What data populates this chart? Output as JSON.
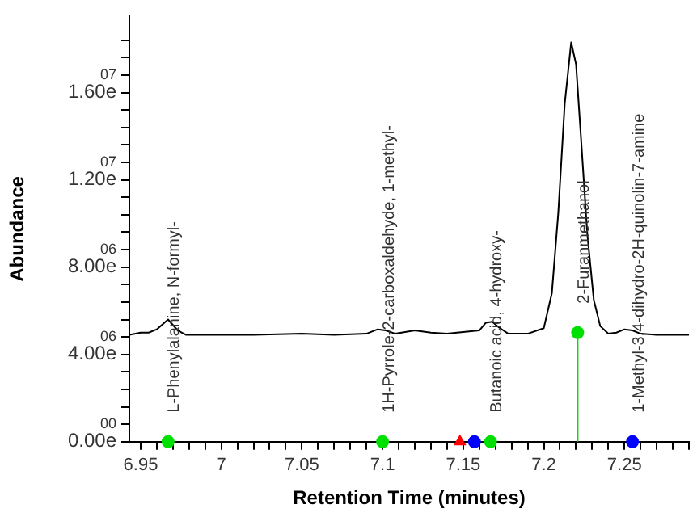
{
  "chart_data": {
    "type": "line",
    "xlabel": "Retention Time (minutes)",
    "ylabel": "Abundance",
    "grid": false,
    "legend": false,
    "xlim": [
      6.943,
      7.29
    ],
    "ylim": [
      0,
      19500000
    ],
    "xticks": [
      {
        "value": 6.95,
        "label": "6.95"
      },
      {
        "value": 6.96,
        "label": null
      },
      {
        "value": 6.97,
        "label": null
      },
      {
        "value": 6.98,
        "label": null
      },
      {
        "value": 6.99,
        "label": null
      },
      {
        "value": 7,
        "label": "7"
      },
      {
        "value": 7.01,
        "label": null
      },
      {
        "value": 7.02,
        "label": null
      },
      {
        "value": 7.03,
        "label": null
      },
      {
        "value": 7.04,
        "label": null
      },
      {
        "value": 7.05,
        "label": "7.05"
      },
      {
        "value": 7.06,
        "label": null
      },
      {
        "value": 7.07,
        "label": null
      },
      {
        "value": 7.08,
        "label": null
      },
      {
        "value": 7.09,
        "label": null
      },
      {
        "value": 7.1,
        "label": "7.1"
      },
      {
        "value": 7.11,
        "label": null
      },
      {
        "value": 7.12,
        "label": null
      },
      {
        "value": 7.13,
        "label": null
      },
      {
        "value": 7.14,
        "label": null
      },
      {
        "value": 7.15,
        "label": "7.15"
      },
      {
        "value": 7.16,
        "label": null
      },
      {
        "value": 7.17,
        "label": null
      },
      {
        "value": 7.18,
        "label": null
      },
      {
        "value": 7.19,
        "label": null
      },
      {
        "value": 7.2,
        "label": "7.2"
      },
      {
        "value": 7.21,
        "label": null
      },
      {
        "value": 7.22,
        "label": null
      },
      {
        "value": 7.23,
        "label": null
      },
      {
        "value": 7.24,
        "label": null
      },
      {
        "value": 7.25,
        "label": "7.25"
      },
      {
        "value": 7.26,
        "label": null
      },
      {
        "value": 7.27,
        "label": null
      },
      {
        "value": 7.28,
        "label": null
      },
      {
        "value": 7.29,
        "label": null
      }
    ],
    "yticks": [
      {
        "value": 0,
        "label": "0.00e00"
      },
      {
        "value": 800000,
        "label": null
      },
      {
        "value": 1600000,
        "label": null
      },
      {
        "value": 2400000,
        "label": null
      },
      {
        "value": 3200000,
        "label": null
      },
      {
        "value": 4000000,
        "label": "4.00e06"
      },
      {
        "value": 4800000,
        "label": null
      },
      {
        "value": 5600000,
        "label": null
      },
      {
        "value": 6400000,
        "label": null
      },
      {
        "value": 7200000,
        "label": null
      },
      {
        "value": 8000000,
        "label": "8.00e06"
      },
      {
        "value": 8800000,
        "label": null
      },
      {
        "value": 9600000,
        "label": null
      },
      {
        "value": 10400000,
        "label": null
      },
      {
        "value": 11200000,
        "label": null
      },
      {
        "value": 12000000,
        "label": "1.20e07"
      },
      {
        "value": 12800000,
        "label": null
      },
      {
        "value": 13600000,
        "label": null
      },
      {
        "value": 14400000,
        "label": null
      },
      {
        "value": 15200000,
        "label": null
      },
      {
        "value": 16000000,
        "label": "1.60e07"
      },
      {
        "value": 16800000,
        "label": null
      },
      {
        "value": 17600000,
        "label": null
      },
      {
        "value": 18400000,
        "label": null
      }
    ],
    "series": [
      {
        "type": "line",
        "color": "#000000",
        "marker": "none",
        "x": [
          6.943,
          6.95,
          6.955,
          6.96,
          6.967,
          6.973,
          6.978,
          7.0,
          7.02,
          7.05,
          7.07,
          7.09,
          7.097,
          7.102,
          7.108,
          7.12,
          7.13,
          7.14,
          7.16,
          7.164,
          7.168,
          7.172,
          7.178,
          7.19,
          7.2,
          7.205,
          7.209,
          7.213,
          7.217,
          7.22,
          7.223,
          7.227,
          7.231,
          7.235,
          7.24,
          7.245,
          7.25,
          7.255,
          7.26,
          7.27,
          7.29
        ],
        "values": [
          4900000.0,
          5000000.0,
          5000000.0,
          5150000.0,
          5600000.0,
          5100000.0,
          4900000.0,
          4900000.0,
          4900000.0,
          4950000.0,
          4900000.0,
          4950000.0,
          5150000.0,
          5100000.0,
          4950000.0,
          5100000.0,
          5000000.0,
          4950000.0,
          5100000.0,
          5450000.0,
          5500000.0,
          5250000.0,
          4950000.0,
          4950000.0,
          5200000.0,
          6800000.0,
          10500000.0,
          15500000.0,
          18300000.0,
          17300000.0,
          14000000.0,
          9500000.0,
          6500000.0,
          5300000.0,
          4950000.0,
          5000000.0,
          5150000.0,
          5100000.0,
          4950000.0,
          4900000.0,
          4900000.0
        ]
      },
      {
        "type": "line",
        "color": "#00e000",
        "marker": "none",
        "x": [
          7.221,
          7.221
        ],
        "values": [
          0,
          5000000
        ]
      },
      {
        "type": "scatter",
        "color": "#00e000",
        "marker": "circle",
        "x": [
          6.967,
          7.1,
          7.167,
          7.221
        ],
        "values": [
          0,
          0,
          0,
          5000000
        ]
      },
      {
        "type": "scatter",
        "color": "#ff0000",
        "marker": "triangle",
        "x": [
          7.148
        ],
        "values": [
          0
        ]
      },
      {
        "type": "scatter",
        "color": "#0000ff",
        "marker": "circle",
        "x": [
          7.157,
          7.255
        ],
        "values": [
          0,
          0
        ]
      }
    ],
    "annotations": [
      {
        "text": "L-Phenylalanine, N-formyl-",
        "x": 6.967,
        "y": 0
      },
      {
        "text": "1H-Pyrrole-2-carboxaldehyde, 1-methyl-",
        "x": 7.1,
        "y": 0
      },
      {
        "text": "Butanoic acid, 4-hydroxy-",
        "x": 7.167,
        "y": 0
      },
      {
        "text": "2-Furanmethanol",
        "x": 7.221,
        "y": 5000000
      },
      {
        "text": "1-Methyl-3,4-dihydro-2H-quinolin-7-amine",
        "x": 7.255,
        "y": 0
      }
    ]
  }
}
